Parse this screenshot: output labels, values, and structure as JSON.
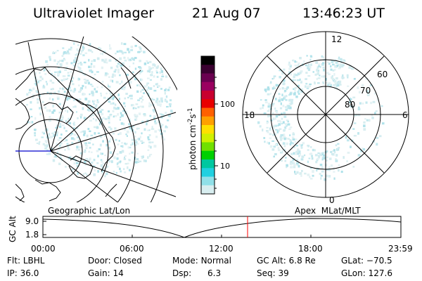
{
  "header": {
    "title": "Ultraviolet Imager",
    "date": "21 Aug 07",
    "time": "13:46:23 UT"
  },
  "colorbar": {
    "label": "photon cm",
    "label_sup1": "-2",
    "label_mid": "s",
    "label_sup2": "-1",
    "ticks": [
      "100",
      "10"
    ],
    "colors": [
      "#000000",
      "#3a0030",
      "#6a0050",
      "#9a0060",
      "#c80030",
      "#e80000",
      "#ff6000",
      "#ffa000",
      "#ffe000",
      "#d0f000",
      "#70e000",
      "#00d000",
      "#00c8a0",
      "#20d0e0",
      "#90e0e8",
      "#d8eef0"
    ]
  },
  "map_labels": {
    "left_title": "Geographic Lat/Lon",
    "right_title": "Apex  MLat/MLT"
  },
  "polar": {
    "mlt_labels": [
      "12",
      "18",
      "6",
      "0"
    ],
    "lat_labels": [
      "60",
      "70",
      "80"
    ]
  },
  "altplot": {
    "ylabel": "GC Alt",
    "yticks": [
      "9.0",
      "1.8"
    ],
    "xticks": [
      "00:00",
      "06:00",
      "12:00",
      "18:00",
      "23:59"
    ]
  },
  "info": [
    [
      {
        "k": "Flt:",
        "v": "LBHL"
      },
      {
        "k": "Door:",
        "v": "Closed"
      },
      {
        "k": "Mode:",
        "v": "Normal"
      },
      {
        "k": "GC Alt:",
        "v": "6.8 Re"
      },
      {
        "k": "GLat:",
        "v": "−70.5"
      }
    ],
    [
      {
        "k": "IP:",
        "v": "36.0"
      },
      {
        "k": "Gain:",
        "v": "14"
      },
      {
        "k": "Dsp:",
        "v": "6.3"
      },
      {
        "k": "Seq:",
        "v": "39"
      },
      {
        "k": "GLon:",
        "v": "127.6"
      }
    ]
  ]
}
